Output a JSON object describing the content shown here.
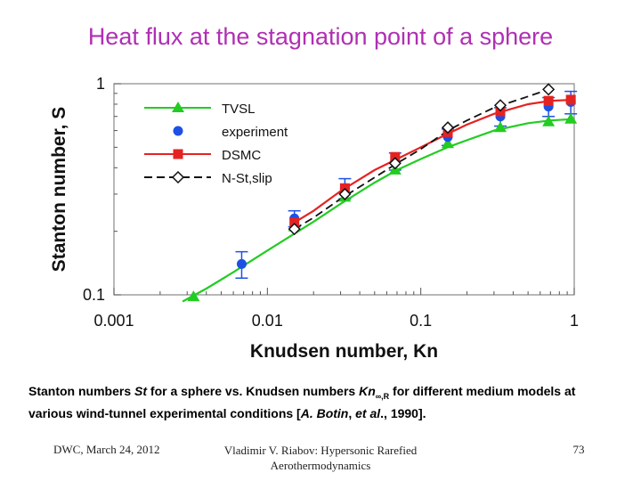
{
  "slide": {
    "title": "Heat flux at the stagnation point of a sphere",
    "caption": {
      "t1": "Stanton numbers ",
      "st": "St",
      "t2": "  for a sphere vs. Knudsen numbers ",
      "kn": "Kn",
      "sub": "∞,R",
      "t3": " for different medium models at various wind-tunnel experimental conditions [",
      "ref": "A. Botin",
      "t4": ", ",
      "etal": "et al",
      "t5": "., 1990]."
    },
    "footer": {
      "left": "DWC, March 24, 2012",
      "center": "Vladimir V. Riabov: Hypersonic Rarefied Aerothermodynamics",
      "page": "73"
    }
  },
  "chart_data": {
    "type": "line",
    "title": "",
    "xlabel": "Knudsen number, Kn",
    "ylabel": "Stanton number, S",
    "xscale": "log",
    "yscale": "log",
    "xlim": [
      0.001,
      1
    ],
    "ylim": [
      0.1,
      1
    ],
    "xticks": [
      0.001,
      0.01,
      0.1,
      1
    ],
    "xtick_labels": [
      "0.001",
      "0.01",
      "0.1",
      "1"
    ],
    "yticks": [
      0.1,
      1
    ],
    "ytick_labels": [
      "0.1",
      "1"
    ],
    "legend_position": "top-left",
    "series": [
      {
        "name": "TVSL",
        "color": "#22cc22",
        "marker": "triangle",
        "line": "solid",
        "curve": {
          "x": [
            0.0028,
            0.004,
            0.006,
            0.01,
            0.015,
            0.02,
            0.03,
            0.05,
            0.07,
            0.1,
            0.15,
            0.2,
            0.3,
            0.5,
            0.7,
            1.0
          ],
          "y": [
            0.093,
            0.107,
            0.128,
            0.162,
            0.195,
            0.222,
            0.27,
            0.34,
            0.39,
            0.44,
            0.5,
            0.54,
            0.6,
            0.65,
            0.67,
            0.68
          ]
        },
        "points": {
          "x": [
            0.0033,
            0.015,
            0.032,
            0.068,
            0.15,
            0.33,
            0.68,
            0.95
          ],
          "y": [
            0.098,
            0.21,
            0.29,
            0.39,
            0.52,
            0.62,
            0.66,
            0.68
          ]
        }
      },
      {
        "name": "experiment",
        "color": "#1e50e6",
        "marker": "circle",
        "line": "none",
        "points": {
          "x": [
            0.0068,
            0.015,
            0.032,
            0.068,
            0.15,
            0.33,
            0.68,
            0.95
          ],
          "y": [
            0.14,
            0.23,
            0.32,
            0.43,
            0.56,
            0.7,
            0.78,
            0.82
          ]
        },
        "yerr": [
          0.02,
          0.02,
          0.035,
          0.04,
          0.05,
          0.07,
          0.08,
          0.1
        ]
      },
      {
        "name": "DSMC",
        "color": "#e52222",
        "marker": "square",
        "line": "solid",
        "curve": {
          "x": [
            0.015,
            0.02,
            0.03,
            0.05,
            0.07,
            0.1,
            0.15,
            0.2,
            0.3,
            0.5,
            0.7,
            1.0
          ],
          "y": [
            0.22,
            0.25,
            0.31,
            0.39,
            0.44,
            0.5,
            0.58,
            0.64,
            0.72,
            0.8,
            0.83,
            0.84
          ]
        },
        "points": {
          "x": [
            0.015,
            0.032,
            0.068,
            0.15,
            0.33,
            0.68,
            0.95
          ],
          "y": [
            0.22,
            0.32,
            0.45,
            0.59,
            0.74,
            0.83,
            0.84
          ]
        }
      },
      {
        "name": "N-St,slip",
        "color": "#111111",
        "marker": "diamond",
        "line": "dashed",
        "curve": {
          "x": [
            0.015,
            0.02,
            0.03,
            0.05,
            0.07,
            0.1,
            0.15,
            0.2,
            0.3,
            0.5,
            0.68
          ],
          "y": [
            0.205,
            0.232,
            0.285,
            0.36,
            0.42,
            0.49,
            0.6,
            0.67,
            0.77,
            0.87,
            0.94
          ]
        },
        "points": {
          "x": [
            0.015,
            0.032,
            0.068,
            0.15,
            0.33,
            0.68
          ],
          "y": [
            0.205,
            0.3,
            0.42,
            0.62,
            0.79,
            0.94
          ]
        }
      }
    ]
  }
}
